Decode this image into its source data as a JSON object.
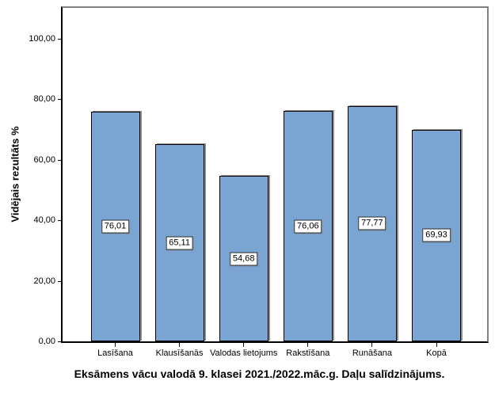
{
  "chart_data": {
    "type": "bar",
    "caption": "Eksāmens vācu valodā 9. klasei 2021./2022.māc.g. Daļu salīdzinājums.",
    "ylabel": "Vidējais rezultāts %",
    "xlabel": "",
    "categories": [
      "Lasīšana",
      "Klausīšanās",
      "Valodas lietojums",
      "Rakstīšana",
      "Runāšana",
      "Kopā"
    ],
    "values": [
      76.01,
      65.11,
      54.68,
      76.06,
      77.77,
      69.93
    ],
    "value_labels": [
      "76,01",
      "65,11",
      "54,68",
      "76,06",
      "77,77",
      "69,93"
    ],
    "y_ticks": [
      0,
      20,
      40,
      60,
      80,
      100
    ],
    "y_tick_labels": [
      "0,00",
      "20,00",
      "40,00",
      "60,00",
      "80,00",
      "100,00"
    ],
    "ylim": [
      0,
      110.2
    ],
    "grid": false,
    "legend": "none",
    "bar_color": "#7AA5D3",
    "bar_border_color": "#000000",
    "bar_shadow_color": "#8C8C8C",
    "frame_color": "#7F7F7F",
    "axis_color": "#000000"
  }
}
